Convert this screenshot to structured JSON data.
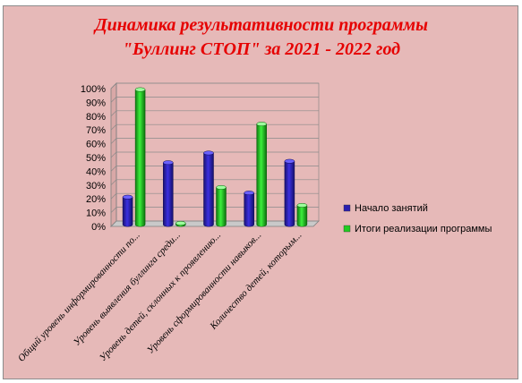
{
  "chart_data": {
    "type": "bar",
    "title_lines": [
      "Динамика результативности программы",
      "\"Буллинг СТОП\" за 2021 - 2022 год"
    ],
    "categories": [
      "Общий уровень информированности по...",
      "Уровень выявления буллинга среди...",
      "Уровень детей, склонных к проявлению...",
      "Уровень сформированности навыков...",
      "Количество детей, которым..."
    ],
    "series": [
      {
        "name": "Начало занятий",
        "values": [
          20,
          45,
          52,
          23,
          46
        ],
        "color": "#2a1fb0"
      },
      {
        "name": "Итоги реализации программы",
        "values": [
          98,
          1,
          27,
          73,
          14
        ],
        "color": "#22cc22"
      }
    ],
    "yticks": [
      "0%",
      "10%",
      "20%",
      "30%",
      "40%",
      "50%",
      "60%",
      "70%",
      "80%",
      "90%",
      "100%"
    ],
    "ylim": [
      0,
      100
    ],
    "legend_position": "right",
    "grid": true
  }
}
